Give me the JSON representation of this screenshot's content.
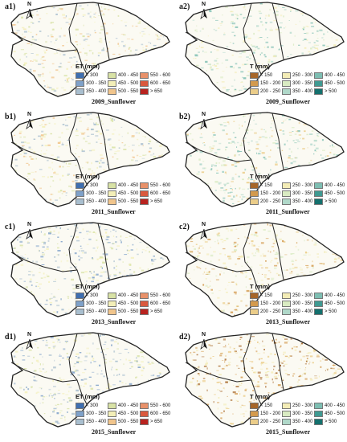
{
  "north_label": "N",
  "legends": {
    "ET": {
      "title": "ET (mm)",
      "items": [
        {
          "label": "< 300",
          "color": "#3f6fb0"
        },
        {
          "label": "400 - 450",
          "color": "#d8e2a5"
        },
        {
          "label": "550 - 600",
          "color": "#e8916a"
        },
        {
          "label": "300 - 350",
          "color": "#7fa1c9"
        },
        {
          "label": "450 - 500",
          "color": "#f3efb8"
        },
        {
          "label": "600 - 650",
          "color": "#d9593e"
        },
        {
          "label": "350 - 400",
          "color": "#a9bfcf"
        },
        {
          "label": "500 - 550",
          "color": "#f1c58c"
        },
        {
          "label": "> 650",
          "color": "#b8231f"
        }
      ]
    },
    "T2009": {
      "title": "T (mm)",
      "items": [
        {
          "label": "< 150",
          "color": "#a66628"
        },
        {
          "label": "250 - 300",
          "color": "#f3ecb6"
        },
        {
          "label": "400 - 450",
          "color": "#7dbeb2"
        },
        {
          "label": "150 - 200",
          "color": "#d39a4e"
        },
        {
          "label": "300 - 350",
          "color": "#d9ebc2"
        },
        {
          "label": "450 - 500",
          "color": "#3f9a92"
        },
        {
          "label": "200 - 250",
          "color": "#ebcd8a"
        },
        {
          "label": "350 - 400",
          "color": "#b0d8c9"
        },
        {
          "label": "> 500",
          "color": "#13706d"
        }
      ]
    },
    "T": {
      "title": "T (mm)",
      "items": [
        {
          "label": "< 150",
          "color": "#a66628"
        },
        {
          "label": "250 - 300",
          "color": "#f3ecb6"
        },
        {
          "label": "400 - 450",
          "color": "#7dbeb2"
        },
        {
          "label": "150 - 200",
          "color": "#d39a4e"
        },
        {
          "label": "300 - 350",
          "color": "#d9ebc2"
        },
        {
          "label": "450 - 500",
          "color": "#3f9a92"
        },
        {
          "label": "200 - 250",
          "color": "#ebcd8a"
        },
        {
          "label": "350 - 400",
          "color": "#b0d8c9"
        },
        {
          "label": "> 500",
          "color": "#13706d"
        }
      ]
    }
  },
  "panels": [
    {
      "label": "a1)",
      "caption": "2009_Sunflower",
      "legend": "ET",
      "palette": [
        "#f3efb8",
        "#d8e2a5",
        "#f1c58c",
        "#a9bfcf"
      ]
    },
    {
      "label": "a2)",
      "caption": "2009_Sunflower",
      "legend": "T2009",
      "palette": [
        "#d9ebc2",
        "#b0d8c9",
        "#f3ecb6",
        "#7dbeb2"
      ]
    },
    {
      "label": "b1)",
      "caption": "2011_Sunflower",
      "legend": "ET",
      "palette": [
        "#f3efb8",
        "#f1c58c",
        "#d8e2a5",
        "#a9bfcf"
      ]
    },
    {
      "label": "b2)",
      "caption": "2011_Sunflower",
      "legend": "T",
      "palette": [
        "#d9ebc2",
        "#b0d8c9",
        "#7dbeb2",
        "#ebcd8a"
      ]
    },
    {
      "label": "c1)",
      "caption": "2013_Sunflower",
      "legend": "ET",
      "palette": [
        "#a9bfcf",
        "#7fa1c9",
        "#d8e2a5",
        "#f3efb8"
      ]
    },
    {
      "label": "c2)",
      "caption": "2013_Sunflower",
      "legend": "T",
      "palette": [
        "#f3ecb6",
        "#ebcd8a",
        "#d9ebc2",
        "#d39a4e"
      ]
    },
    {
      "label": "d1)",
      "caption": "2015_Sunflower",
      "legend": "ET",
      "palette": [
        "#a9bfcf",
        "#d8e2a5",
        "#7fa1c9",
        "#f3efb8"
      ]
    },
    {
      "label": "d2)",
      "caption": "2015_Sunflower",
      "legend": "T",
      "palette": [
        "#ebcd8a",
        "#d39a4e",
        "#f3ecb6",
        "#a66628"
      ]
    }
  ]
}
